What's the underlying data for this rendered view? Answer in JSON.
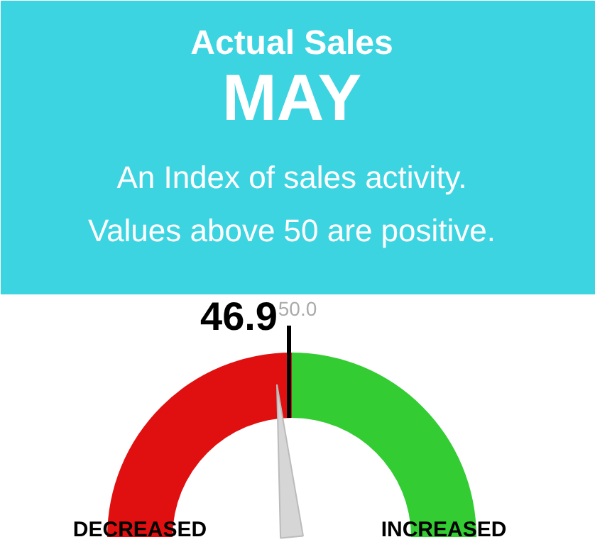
{
  "chart_data": {
    "type": "donut",
    "title": "Actual Sales",
    "subtitle": "MAY",
    "categories": [
      "DECREASED",
      "INCREASED"
    ],
    "values": [
      50,
      50
    ],
    "colors": [
      "#e01010",
      "#33cc33"
    ],
    "needle": "DECREASED",
    "annotations": [
      "An Index of sales activity.\nValues above 50 are positive.",
      "46.9",
      "50.0"
    ]
  }
}
